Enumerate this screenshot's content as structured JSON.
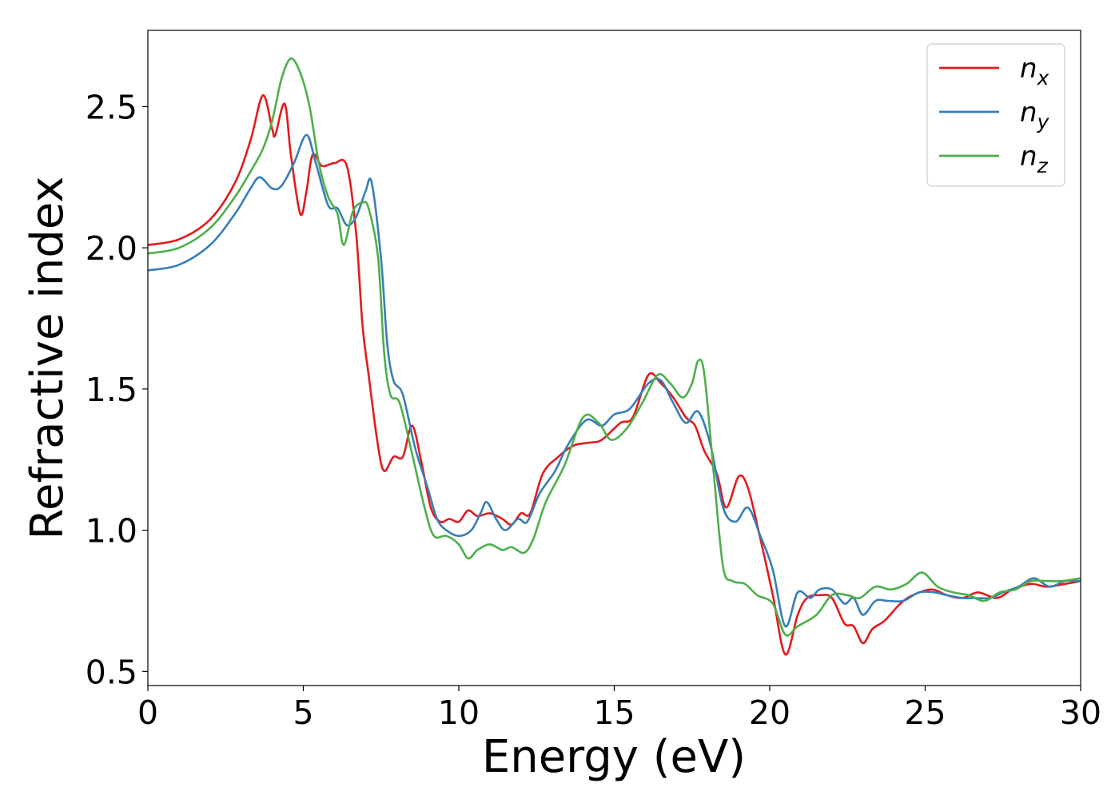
{
  "chart_data": {
    "type": "line",
    "xlabel": "Energy (eV)",
    "ylabel": "Refractive index",
    "xlim": [
      0,
      30
    ],
    "ylim": [
      0.45,
      2.77
    ],
    "xticks": [
      0,
      5,
      10,
      15,
      20,
      25,
      30
    ],
    "xtick_labels": [
      "0",
      "5",
      "10",
      "15",
      "20",
      "25",
      "30"
    ],
    "yticks": [
      0.5,
      1.0,
      1.5,
      2.0,
      2.5
    ],
    "ytick_labels": [
      "0.5",
      "1.0",
      "1.5",
      "2.0",
      "2.5"
    ],
    "grid": false,
    "legend_position": "top-right",
    "series": [
      {
        "name": "n",
        "subscript": "x",
        "color": "#e41a1c",
        "points": [
          [
            0,
            2.01
          ],
          [
            1,
            2.03
          ],
          [
            2,
            2.1
          ],
          [
            2.8,
            2.23
          ],
          [
            3.3,
            2.38
          ],
          [
            3.7,
            2.54
          ],
          [
            4,
            2.42
          ],
          [
            4.1,
            2.4
          ],
          [
            4.4,
            2.51
          ],
          [
            4.6,
            2.33
          ],
          [
            4.9,
            2.12
          ],
          [
            5.1,
            2.2
          ],
          [
            5.3,
            2.33
          ],
          [
            5.6,
            2.29
          ],
          [
            6,
            2.3
          ],
          [
            6.4,
            2.29
          ],
          [
            6.7,
            2.05
          ],
          [
            6.9,
            1.73
          ],
          [
            7.1,
            1.55
          ],
          [
            7.4,
            1.3
          ],
          [
            7.6,
            1.21
          ],
          [
            7.9,
            1.26
          ],
          [
            8.2,
            1.26
          ],
          [
            8.5,
            1.37
          ],
          [
            8.8,
            1.24
          ],
          [
            9.1,
            1.08
          ],
          [
            9.4,
            1.03
          ],
          [
            9.7,
            1.04
          ],
          [
            10,
            1.03
          ],
          [
            10.3,
            1.07
          ],
          [
            10.6,
            1.05
          ],
          [
            11,
            1.06
          ],
          [
            11.4,
            1.04
          ],
          [
            11.7,
            1.02
          ],
          [
            12,
            1.06
          ],
          [
            12.3,
            1.06
          ],
          [
            12.7,
            1.2
          ],
          [
            13.2,
            1.26
          ],
          [
            13.7,
            1.3
          ],
          [
            14.2,
            1.31
          ],
          [
            14.6,
            1.32
          ],
          [
            15.2,
            1.38
          ],
          [
            15.6,
            1.4
          ],
          [
            16.1,
            1.55
          ],
          [
            16.5,
            1.52
          ],
          [
            16.9,
            1.47
          ],
          [
            17.3,
            1.4
          ],
          [
            17.6,
            1.37
          ],
          [
            17.9,
            1.28
          ],
          [
            18.3,
            1.2
          ],
          [
            18.6,
            1.08
          ],
          [
            19,
            1.19
          ],
          [
            19.3,
            1.15
          ],
          [
            19.7,
            0.97
          ],
          [
            20.1,
            0.77
          ],
          [
            20.5,
            0.56
          ],
          [
            20.9,
            0.7
          ],
          [
            21.2,
            0.76
          ],
          [
            21.6,
            0.77
          ],
          [
            22,
            0.76
          ],
          [
            22.4,
            0.67
          ],
          [
            22.7,
            0.66
          ],
          [
            23,
            0.6
          ],
          [
            23.3,
            0.65
          ],
          [
            23.7,
            0.68
          ],
          [
            24.2,
            0.74
          ],
          [
            24.6,
            0.77
          ],
          [
            25.2,
            0.79
          ],
          [
            25.7,
            0.77
          ],
          [
            26.2,
            0.76
          ],
          [
            26.7,
            0.78
          ],
          [
            27.3,
            0.76
          ],
          [
            27.8,
            0.79
          ],
          [
            28.4,
            0.81
          ],
          [
            28.9,
            0.8
          ],
          [
            29.5,
            0.81
          ],
          [
            30,
            0.82
          ]
        ]
      },
      {
        "name": "n",
        "subscript": "y",
        "color": "#377eb8",
        "points": [
          [
            0,
            1.92
          ],
          [
            1,
            1.94
          ],
          [
            2,
            2.01
          ],
          [
            2.8,
            2.12
          ],
          [
            3.3,
            2.21
          ],
          [
            3.6,
            2.25
          ],
          [
            4,
            2.21
          ],
          [
            4.3,
            2.22
          ],
          [
            4.7,
            2.3
          ],
          [
            5.1,
            2.4
          ],
          [
            5.4,
            2.3
          ],
          [
            5.8,
            2.15
          ],
          [
            6.1,
            2.14
          ],
          [
            6.4,
            2.08
          ],
          [
            6.7,
            2.11
          ],
          [
            7,
            2.2
          ],
          [
            7.2,
            2.23
          ],
          [
            7.5,
            1.96
          ],
          [
            7.7,
            1.66
          ],
          [
            7.9,
            1.53
          ],
          [
            8.2,
            1.48
          ],
          [
            8.6,
            1.29
          ],
          [
            9,
            1.15
          ],
          [
            9.3,
            1.04
          ],
          [
            9.6,
            1.0
          ],
          [
            10,
            0.98
          ],
          [
            10.4,
            1.0
          ],
          [
            10.7,
            1.06
          ],
          [
            10.9,
            1.1
          ],
          [
            11.2,
            1.04
          ],
          [
            11.5,
            1.0
          ],
          [
            11.9,
            1.04
          ],
          [
            12.2,
            1.03
          ],
          [
            12.6,
            1.13
          ],
          [
            13.1,
            1.21
          ],
          [
            13.5,
            1.3
          ],
          [
            14.1,
            1.39
          ],
          [
            14.6,
            1.37
          ],
          [
            15,
            1.41
          ],
          [
            15.5,
            1.43
          ],
          [
            16.1,
            1.52
          ],
          [
            16.5,
            1.53
          ],
          [
            16.9,
            1.45
          ],
          [
            17.3,
            1.38
          ],
          [
            17.7,
            1.42
          ],
          [
            18.1,
            1.3
          ],
          [
            18.5,
            1.08
          ],
          [
            18.9,
            1.03
          ],
          [
            19.3,
            1.08
          ],
          [
            19.7,
            0.98
          ],
          [
            20.1,
            0.86
          ],
          [
            20.5,
            0.66
          ],
          [
            20.9,
            0.78
          ],
          [
            21.3,
            0.76
          ],
          [
            21.6,
            0.79
          ],
          [
            22,
            0.79
          ],
          [
            22.4,
            0.74
          ],
          [
            22.7,
            0.76
          ],
          [
            23,
            0.7
          ],
          [
            23.4,
            0.75
          ],
          [
            23.8,
            0.75
          ],
          [
            24.3,
            0.75
          ],
          [
            24.8,
            0.78
          ],
          [
            25.3,
            0.78
          ],
          [
            25.7,
            0.77
          ],
          [
            26.2,
            0.76
          ],
          [
            26.6,
            0.76
          ],
          [
            27.1,
            0.76
          ],
          [
            27.5,
            0.78
          ],
          [
            28,
            0.8
          ],
          [
            28.5,
            0.83
          ],
          [
            29,
            0.8
          ],
          [
            29.5,
            0.82
          ],
          [
            30,
            0.82
          ]
        ]
      },
      {
        "name": "n",
        "subscript": "z",
        "color": "#4daf4a",
        "points": [
          [
            0,
            1.98
          ],
          [
            1,
            2.0
          ],
          [
            2,
            2.07
          ],
          [
            2.8,
            2.18
          ],
          [
            3.3,
            2.27
          ],
          [
            3.7,
            2.35
          ],
          [
            4,
            2.45
          ],
          [
            4.3,
            2.6
          ],
          [
            4.6,
            2.67
          ],
          [
            4.9,
            2.62
          ],
          [
            5.2,
            2.5
          ],
          [
            5.5,
            2.3
          ],
          [
            5.8,
            2.18
          ],
          [
            6.1,
            2.12
          ],
          [
            6.3,
            2.01
          ],
          [
            6.6,
            2.13
          ],
          [
            6.9,
            2.16
          ],
          [
            7.1,
            2.14
          ],
          [
            7.4,
            1.97
          ],
          [
            7.6,
            1.63
          ],
          [
            7.8,
            1.48
          ],
          [
            8.1,
            1.45
          ],
          [
            8.5,
            1.27
          ],
          [
            8.9,
            1.08
          ],
          [
            9.2,
            0.98
          ],
          [
            9.6,
            0.98
          ],
          [
            10,
            0.95
          ],
          [
            10.3,
            0.9
          ],
          [
            10.6,
            0.93
          ],
          [
            11,
            0.95
          ],
          [
            11.4,
            0.93
          ],
          [
            11.7,
            0.94
          ],
          [
            12.1,
            0.92
          ],
          [
            12.4,
            0.97
          ],
          [
            12.8,
            1.1
          ],
          [
            13.4,
            1.23
          ],
          [
            14,
            1.4
          ],
          [
            14.5,
            1.38
          ],
          [
            14.9,
            1.32
          ],
          [
            15.4,
            1.36
          ],
          [
            15.9,
            1.45
          ],
          [
            16.4,
            1.55
          ],
          [
            16.8,
            1.52
          ],
          [
            17.2,
            1.47
          ],
          [
            17.5,
            1.52
          ],
          [
            17.7,
            1.6
          ],
          [
            17.9,
            1.55
          ],
          [
            18.2,
            1.2
          ],
          [
            18.5,
            0.87
          ],
          [
            18.8,
            0.82
          ],
          [
            19.2,
            0.81
          ],
          [
            19.6,
            0.77
          ],
          [
            20.1,
            0.74
          ],
          [
            20.5,
            0.63
          ],
          [
            20.9,
            0.66
          ],
          [
            21.5,
            0.7
          ],
          [
            22,
            0.77
          ],
          [
            22.5,
            0.77
          ],
          [
            22.9,
            0.76
          ],
          [
            23.4,
            0.8
          ],
          [
            23.9,
            0.79
          ],
          [
            24.4,
            0.81
          ],
          [
            24.9,
            0.85
          ],
          [
            25.4,
            0.8
          ],
          [
            25.9,
            0.78
          ],
          [
            26.4,
            0.77
          ],
          [
            26.9,
            0.75
          ],
          [
            27.4,
            0.78
          ],
          [
            27.9,
            0.79
          ],
          [
            28.4,
            0.82
          ],
          [
            28.9,
            0.82
          ],
          [
            29.4,
            0.82
          ],
          [
            30,
            0.83
          ]
        ]
      }
    ]
  }
}
